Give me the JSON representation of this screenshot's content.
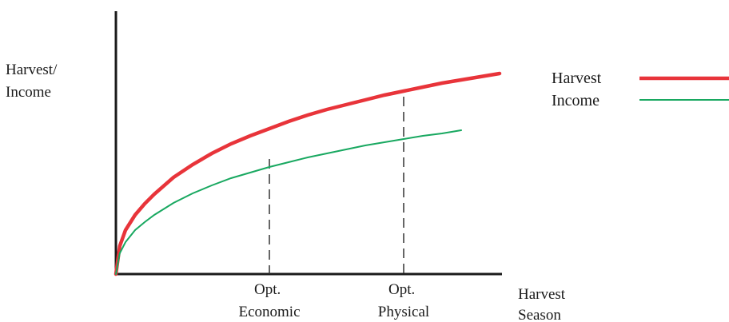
{
  "chart_data": {
    "type": "line",
    "ylabel": [
      "Harvest/",
      "Income"
    ],
    "xlabel": [
      "Harvest",
      "Season"
    ],
    "series": [
      {
        "name": "Harvest",
        "color": "#e8343a",
        "x": [
          0,
          0.1,
          0.25,
          0.5,
          0.75,
          1,
          1.5,
          2,
          2.5,
          3,
          3.5,
          4,
          4.5,
          5,
          5.5,
          6,
          6.5,
          7,
          7.5,
          8,
          8.5,
          9,
          9.5,
          10
        ],
        "y": [
          0,
          35,
          55,
          74,
          88,
          100,
          121,
          137,
          151,
          163,
          173,
          182,
          191,
          199,
          206,
          212,
          218,
          224,
          229,
          234,
          239,
          243,
          247,
          251
        ]
      },
      {
        "name": "Income",
        "color": "#18a860",
        "x": [
          0,
          0.1,
          0.25,
          0.5,
          0.75,
          1,
          1.5,
          2,
          2.5,
          3,
          3.5,
          4,
          4.5,
          5,
          5.5,
          6,
          6.5,
          7,
          7.5,
          8,
          8.5,
          9
        ],
        "y": [
          0,
          26,
          40,
          55,
          65,
          74,
          89,
          101,
          111,
          120,
          127,
          134,
          140,
          146,
          151,
          156,
          161,
          165,
          169,
          173,
          176,
          180
        ]
      }
    ],
    "markers": [
      {
        "label": [
          "Opt.",
          "Economic"
        ],
        "x": 4,
        "y": 144
      },
      {
        "label": [
          "Opt.",
          "Physical"
        ],
        "x": 7.5,
        "y": 222
      }
    ],
    "xlim": [
      0,
      10.5
    ],
    "ylim": [
      0,
      280
    ],
    "grid": false,
    "legend": "right",
    "ticks": false
  }
}
